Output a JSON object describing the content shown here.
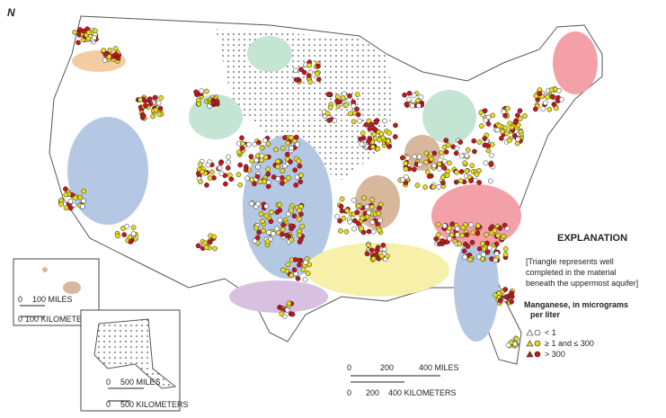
{
  "north": "N",
  "explanation": {
    "title": "EXPLANATION",
    "note_lines": [
      "[Triangle represents well",
      "completed in the material",
      "beneath the uppermost aquifer]"
    ],
    "legend_title_lines": [
      "Manganese, in micrograms",
      "per liter"
    ],
    "legend": [
      {
        "label": "< 1",
        "color": "#ffffff"
      },
      {
        "label": "≥ 1 and ≤ 300",
        "color": "#e8dc1c"
      },
      {
        "label": "> 300",
        "color": "#c4161c"
      }
    ]
  },
  "scale_bars": {
    "conus": {
      "miles": [
        "0",
        "200",
        "400 MILES"
      ],
      "kilometers": [
        "0",
        "200",
        "400 KILOMETERS"
      ]
    },
    "hawaii": {
      "miles": [
        "0",
        "100 MILES"
      ],
      "kilometers": [
        "0",
        "100 KILOMETERS"
      ]
    },
    "alaska": {
      "miles": [
        "0",
        "500 MILES"
      ],
      "kilometers": [
        "0",
        "500 KILOMETERS"
      ]
    }
  }
}
